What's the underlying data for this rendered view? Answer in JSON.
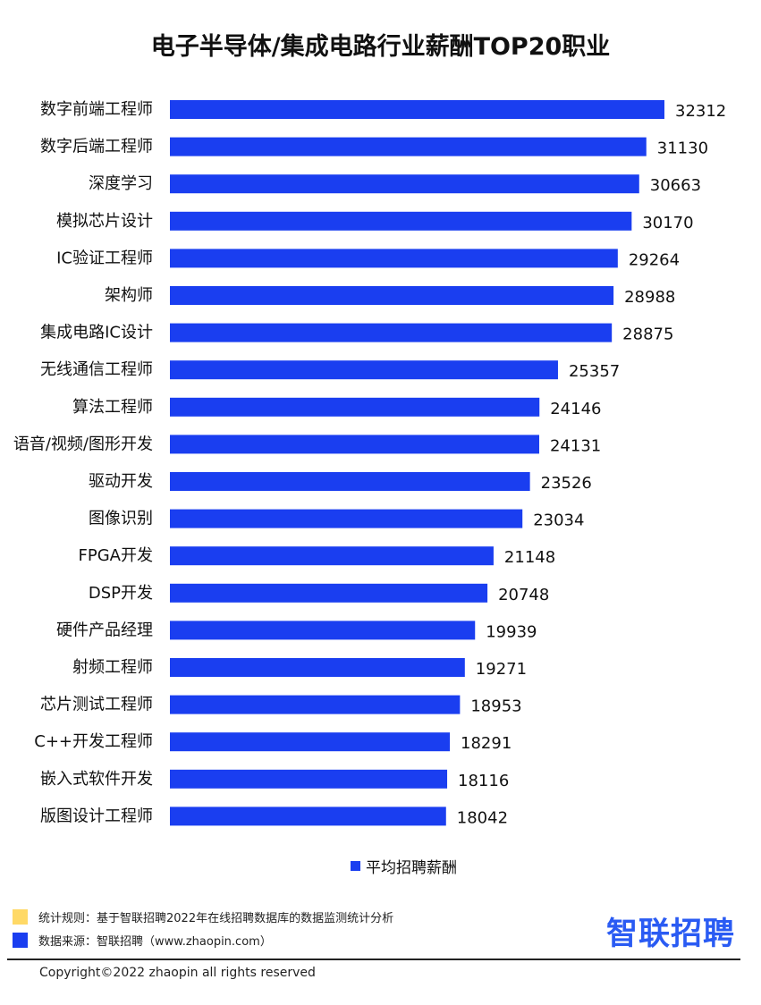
{
  "chart_data": {
    "type": "bar",
    "orientation": "horizontal",
    "title": "电子半导体/集成电路行业薪酬TOP20职业",
    "categories": [
      "数字前端工程师",
      "数字后端工程师",
      "深度学习",
      "模拟芯片设计",
      "IC验证工程师",
      "架构师",
      "集成电路IC设计",
      "无线通信工程师",
      "算法工程师",
      "语音/视频/图形开发",
      "驱动开发",
      "图像识别",
      "FPGA开发",
      "DSP开发",
      "硬件产品经理",
      "射频工程师",
      "芯片测试工程师",
      "C++开发工程师",
      "嵌入式软件开发",
      "版图设计工程师"
    ],
    "series": [
      {
        "name": "平均招聘薪酬",
        "values": [
          32312,
          31130,
          30663,
          30170,
          29264,
          28988,
          28875,
          25357,
          24146,
          24131,
          23526,
          23034,
          21148,
          20748,
          19939,
          19271,
          18953,
          18291,
          18116,
          18042
        ]
      }
    ],
    "xlim": [
      0,
      32312
    ],
    "grid": false,
    "legend_position": "bottom",
    "data_labels": true,
    "bar_color": "#1a3ef0"
  },
  "notes": [
    {
      "text": "统计规则：基于智联招聘2022年在线招聘数据库的数据监测统计分析",
      "color": "#ffd966"
    },
    {
      "text": "数据来源：智联招聘（www.zhaopin.com）",
      "color": "#1a3ef0"
    }
  ],
  "brand": {
    "logo_text": "智联招聘",
    "color": "#2a5bf3"
  },
  "footer": {
    "copyright": "Copyright©2022 zhaopin all rights reserved"
  }
}
